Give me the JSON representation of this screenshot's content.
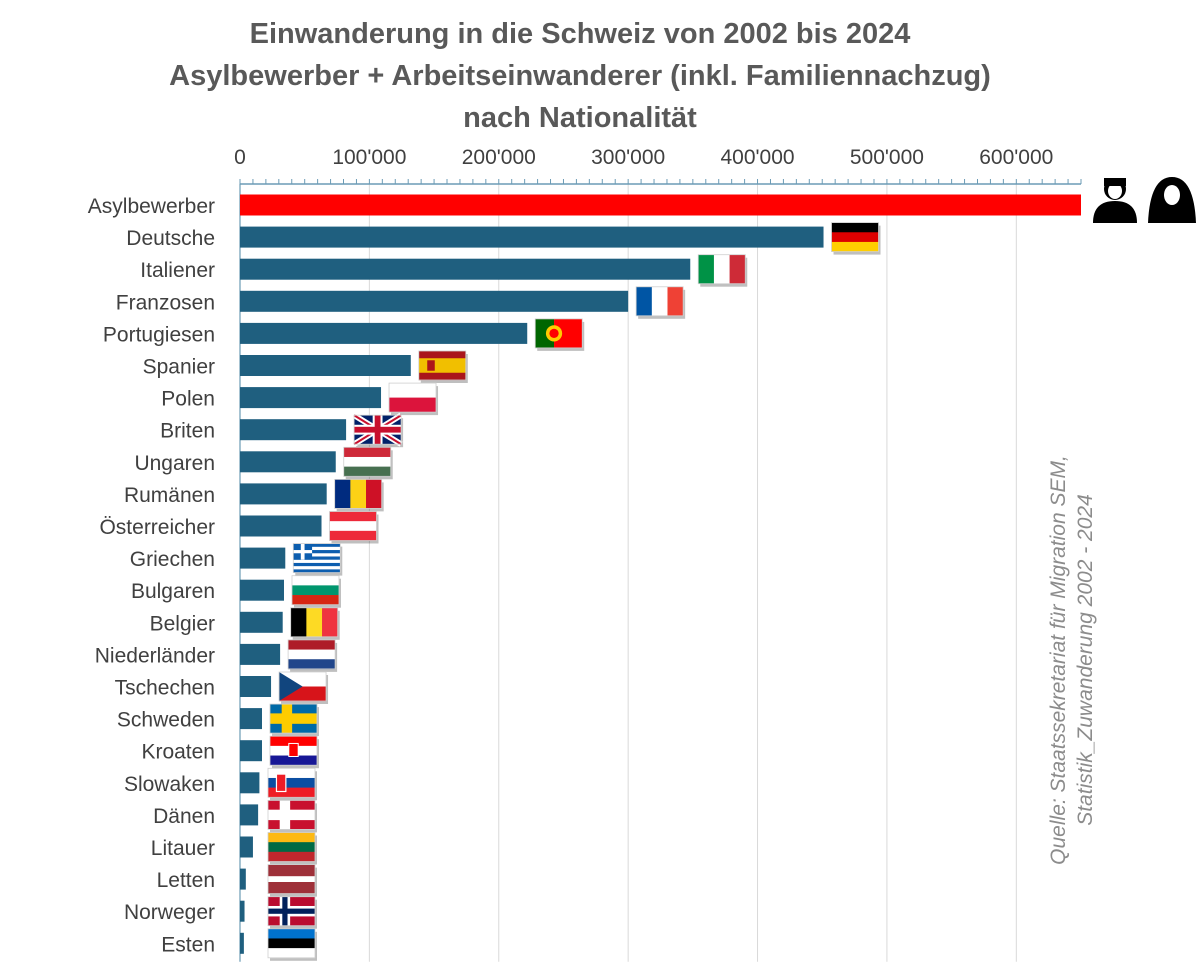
{
  "chart_data": {
    "type": "bar",
    "orientation": "horizontal",
    "title": "Einwanderung in die Schweiz von 2002 bis 2024",
    "subtitle": "Asylbewerber + Arbeitseinwanderer (inkl. Familiennachzug)",
    "subtitle2": "nach Nationalität",
    "xlabel": "",
    "ylabel": "",
    "xlim": [
      0,
      650000
    ],
    "x_ticks": [
      0,
      100000,
      200000,
      300000,
      400000,
      500000,
      600000
    ],
    "x_tick_labels": [
      "0",
      "100'000",
      "200'000",
      "300'000",
      "400'000",
      "500'000",
      "600'000"
    ],
    "axis_position": "top",
    "grid": true,
    "categories": [
      "Asylbewerber",
      "Deutsche",
      "Italiener",
      "Franzosen",
      "Portugiesen",
      "Spanier",
      "Polen",
      "Briten",
      "Ungaren",
      "Rumänen",
      "Österreicher",
      "Griechen",
      "Bulgaren",
      "Belgier",
      "Niederländer",
      "Tschechen",
      "Schweden",
      "Kroaten",
      "Slowaken",
      "Dänen",
      "Litauer",
      "Letten",
      "Norweger",
      "Esten"
    ],
    "values": [
      650000,
      451000,
      348000,
      300000,
      222000,
      132000,
      109000,
      82000,
      74000,
      67000,
      63000,
      35000,
      34000,
      33000,
      31000,
      24000,
      17000,
      17000,
      15000,
      14000,
      10000,
      4500,
      3500,
      3000
    ],
    "flags": [
      "asylum-icons",
      "germany",
      "italy",
      "france",
      "portugal",
      "spain",
      "poland",
      "uk",
      "hungary",
      "romania",
      "austria",
      "greece",
      "bulgaria",
      "belgium",
      "netherlands",
      "czechia",
      "sweden",
      "croatia",
      "slovakia",
      "denmark",
      "lithuania",
      "latvia",
      "norway",
      "estonia"
    ],
    "colors": {
      "highlight": "#ff0000",
      "bar": "#1f5f7f",
      "axis": "#6b9bb5",
      "grid": "#d9d9d9",
      "text": "#404040",
      "title": "#595959",
      "source": "#8c8c8c"
    }
  },
  "source": {
    "line1": "Quelle: Staatssekretariat für Migration SEM,",
    "line2": "Statistik_Zuwanderung 2002 - 2024"
  }
}
